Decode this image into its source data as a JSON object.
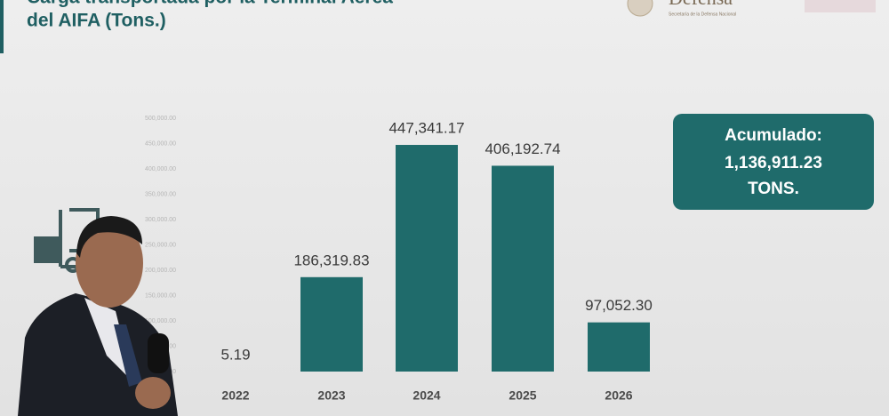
{
  "logo": {
    "name": "Defensa",
    "subtitle": "Secretaría de la Defensa Nacional"
  },
  "chart_data": {
    "type": "bar",
    "title_line_1": "Carga transportada por la Terminal Aérea",
    "title_line_2": "del AIFA (Tons.)",
    "categories": [
      "2022",
      "2023",
      "2024",
      "2025",
      "2026"
    ],
    "values": [
      5.19,
      186319.83,
      447341.17,
      406192.74,
      97052.3
    ],
    "value_labels": [
      "5.19",
      "186,319.83",
      "447,341.17",
      "406,192.74",
      "97,052.30"
    ],
    "color": "#1f6b6b",
    "ylim": [
      0,
      500000
    ],
    "yticks": [
      {
        "value": 0,
        "label": "0.00"
      },
      {
        "value": 50000,
        "label": "50,000.00"
      },
      {
        "value": 100000,
        "label": "100,000.00"
      },
      {
        "value": 150000,
        "label": "150,000.00"
      },
      {
        "value": 200000,
        "label": "200,000.00"
      },
      {
        "value": 250000,
        "label": "250,000.00"
      },
      {
        "value": 300000,
        "label": "300,000.00"
      },
      {
        "value": 350000,
        "label": "350,000.00"
      },
      {
        "value": 400000,
        "label": "400,000.00"
      },
      {
        "value": 450000,
        "label": "450,000.00"
      },
      {
        "value": 500000,
        "label": "500,000.00"
      }
    ],
    "grid": false,
    "annotations": [
      "Acumulado:",
      "1,136,911.23",
      "TONS."
    ]
  }
}
